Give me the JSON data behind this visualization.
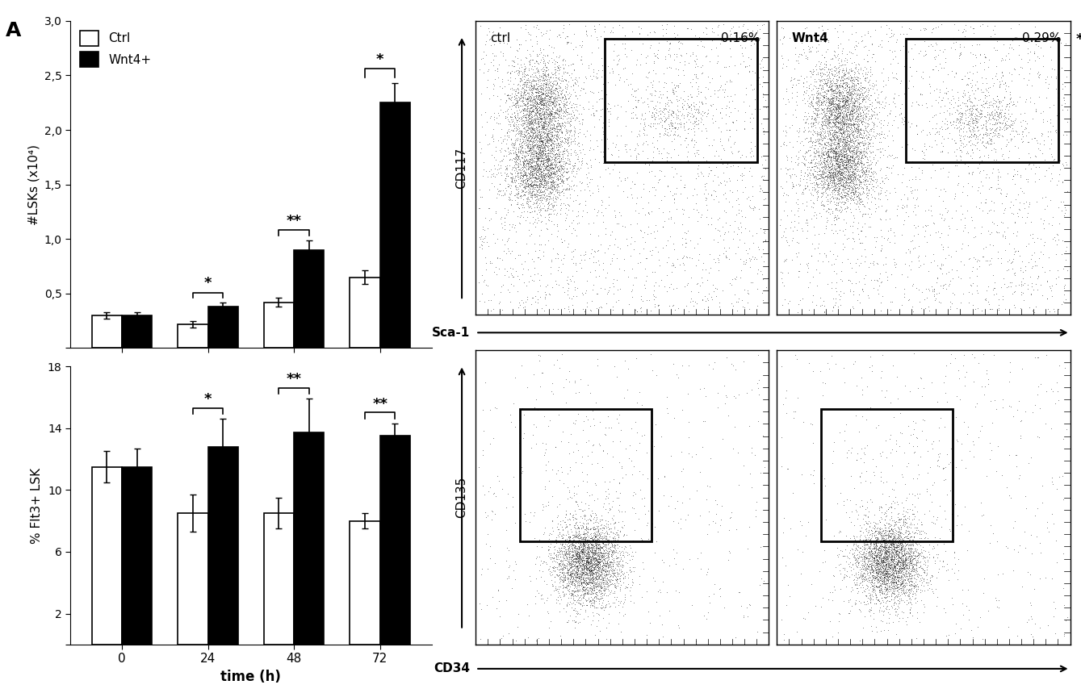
{
  "panel_label": "A",
  "top_chart": {
    "ylabel": "#LSKs (x10⁴)",
    "yticks": [
      0.0,
      0.5,
      1.0,
      1.5,
      2.0,
      2.5,
      3.0
    ],
    "ytick_labels": [
      "",
      "0,5",
      "1,0",
      "1,5",
      "2,0",
      "2,5",
      "3,0"
    ],
    "ylim": [
      0,
      3.0
    ],
    "timepoints": [
      0,
      24,
      48,
      72
    ],
    "ctrl_values": [
      0.3,
      0.22,
      0.42,
      0.65
    ],
    "ctrl_errors": [
      0.03,
      0.03,
      0.04,
      0.06
    ],
    "wnt4_values": [
      0.3,
      0.38,
      0.9,
      2.25
    ],
    "wnt4_errors": [
      0.03,
      0.04,
      0.09,
      0.18
    ],
    "legend_ctrl": "Ctrl",
    "legend_wnt4": "Wnt4+"
  },
  "bottom_chart": {
    "ylabel": "% Flt3+ LSK",
    "yticks": [
      0,
      2,
      6,
      10,
      14,
      18
    ],
    "ytick_labels": [
      "",
      "2",
      "6",
      "10",
      "14",
      "18"
    ],
    "ylim": [
      0,
      18
    ],
    "xlabel": "time (h)",
    "timepoints": [
      0,
      24,
      48,
      72
    ],
    "ctrl_values": [
      11.5,
      8.5,
      8.5,
      8.0
    ],
    "ctrl_errors": [
      1.0,
      1.2,
      1.0,
      0.5
    ],
    "wnt4_values": [
      11.5,
      12.8,
      13.7,
      13.5
    ],
    "wnt4_errors": [
      1.2,
      1.8,
      2.2,
      0.8
    ]
  },
  "flow_top_ylabel": "CD117",
  "flow_top_xlabel": "Sca-1",
  "flow_bottom_ylabel": "CD135",
  "flow_bottom_xlabel": "CD34",
  "bar_width": 0.35,
  "ctrl_color": "#ffffff",
  "wnt4_color": "#000000",
  "edge_color": "#000000",
  "background_color": "#ffffff",
  "fontsize_labels": 11,
  "fontsize_ticks": 10
}
